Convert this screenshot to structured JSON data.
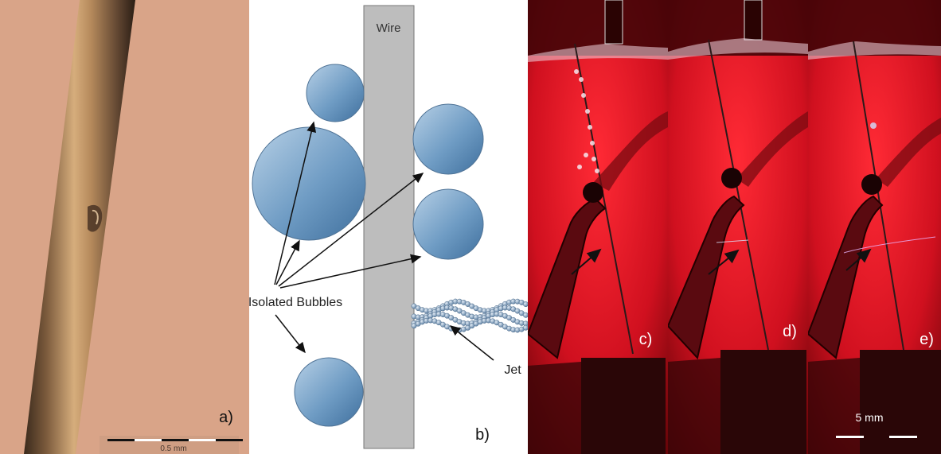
{
  "panels": {
    "a": {
      "label": "a)",
      "scale_text": "0.5 mm",
      "background": "#d9a488"
    },
    "b": {
      "label": "b)",
      "wire_label": "Wire",
      "bubbles_label": "Isolated Bubbles",
      "jet_label": "Jet",
      "bubble_color": "#6f9cc4",
      "wire_color": "#bdbdbd"
    },
    "c": {
      "label": "c)",
      "background": "#c3101e"
    },
    "d": {
      "label": "d)",
      "background": "#c3101e"
    },
    "e": {
      "label": "e)",
      "scale_text": "5 mm",
      "background": "#c3101e"
    }
  }
}
